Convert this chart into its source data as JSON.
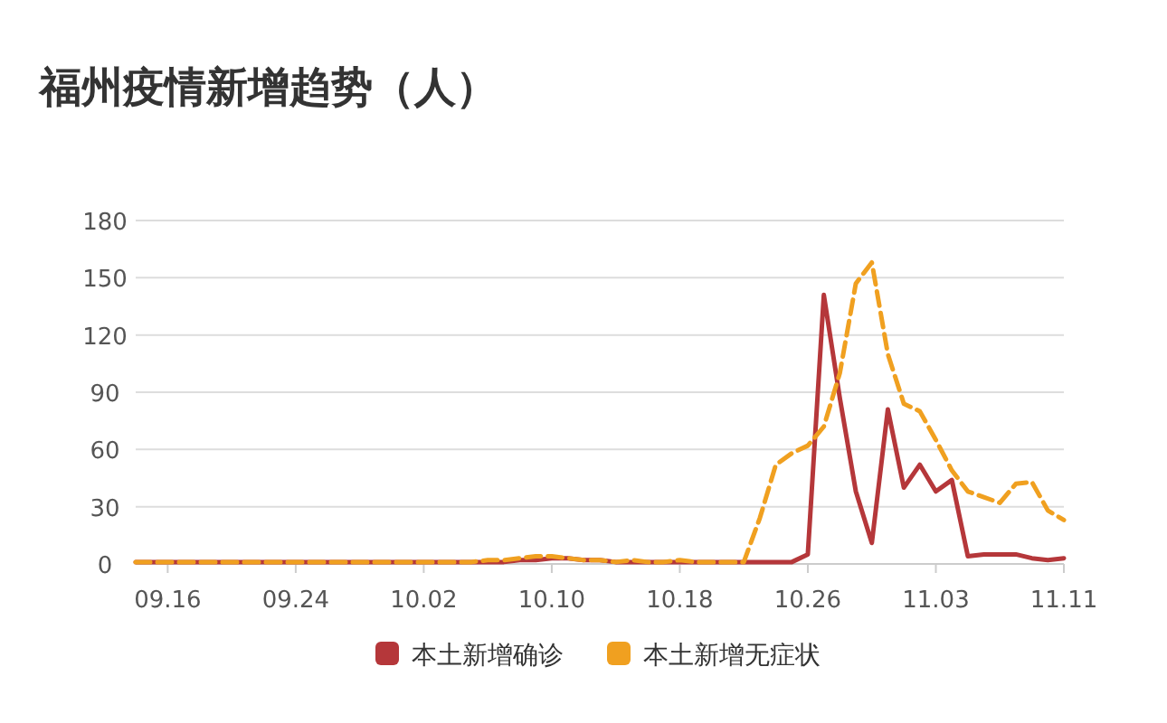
{
  "chart_data": {
    "type": "line",
    "title": "福州疫情新增趋势（人）",
    "x": [
      "--09-14",
      "--09-15",
      "--09-16",
      "--09-17",
      "--09-18",
      "--09-19",
      "--09-20",
      "--09-21",
      "--09-22",
      "--09-23",
      "--09-24",
      "--09-25",
      "--09-26",
      "--09-27",
      "--09-28",
      "--09-29",
      "--09-30",
      "--10-01",
      "--10-02",
      "--10-03",
      "--10-04",
      "--10-05",
      "--10-06",
      "--10-07",
      "--10-08",
      "--10-09",
      "--10-10",
      "--10-11",
      "--10-12",
      "--10-13",
      "--10-14",
      "--10-15",
      "--10-16",
      "--10-17",
      "--10-18",
      "--10-19",
      "--10-20",
      "--10-21",
      "--10-22",
      "--10-23",
      "--10-24",
      "--10-25",
      "--10-26",
      "--10-27",
      "--10-28",
      "--10-29",
      "--10-30",
      "--10-31",
      "--11-01",
      "--11-02",
      "--11-03",
      "--11-04",
      "--11-05",
      "--11-06",
      "--11-07",
      "--11-08",
      "--11-09",
      "--11-10",
      "--11-11"
    ],
    "series": [
      {
        "name": "本土新增确诊",
        "color": "#b5373a",
        "line_style": "solid",
        "values": [
          1,
          1,
          1,
          1,
          1,
          1,
          1,
          1,
          1,
          1,
          1,
          1,
          1,
          1,
          1,
          1,
          1,
          1,
          1,
          1,
          1,
          1,
          1,
          1,
          2,
          2,
          3,
          3,
          2,
          2,
          1,
          1,
          1,
          1,
          1,
          1,
          1,
          1,
          1,
          1,
          1,
          1,
          5,
          141,
          87,
          38,
          11,
          81,
          40,
          52,
          38,
          44,
          4,
          5,
          5,
          5,
          3,
          2,
          3
        ]
      },
      {
        "name": "本土新增无症状",
        "color": "#f0a020",
        "line_style": "dashed",
        "values": [
          1,
          1,
          1,
          1,
          1,
          1,
          1,
          1,
          1,
          1,
          1,
          1,
          1,
          1,
          1,
          1,
          1,
          1,
          1,
          1,
          1,
          1,
          2,
          2,
          3,
          4,
          4,
          3,
          2,
          2,
          1,
          2,
          1,
          1,
          2,
          1,
          1,
          1,
          1,
          24,
          52,
          58,
          62,
          72,
          100,
          147,
          158,
          110,
          84,
          80,
          65,
          49,
          38,
          35,
          32,
          42,
          43,
          28,
          23
        ]
      }
    ],
    "xlim": [
      "--09-14",
      "--11-11"
    ],
    "xticks": [
      {
        "value": "--09-16",
        "label": "09.16"
      },
      {
        "value": "--09-24",
        "label": "09.24"
      },
      {
        "value": "--10-02",
        "label": "10.02"
      },
      {
        "value": "--10-10",
        "label": "10.10"
      },
      {
        "value": "--10-18",
        "label": "10.18"
      },
      {
        "value": "--10-26",
        "label": "10.26"
      },
      {
        "value": "--11-03",
        "label": "11.03"
      },
      {
        "value": "--11-11",
        "label": "11.11"
      }
    ],
    "ylim": [
      0,
      180
    ],
    "yticks": [
      0,
      30,
      60,
      90,
      120,
      150,
      180
    ],
    "grid": "y",
    "legend": "bottom",
    "marker": "none"
  }
}
